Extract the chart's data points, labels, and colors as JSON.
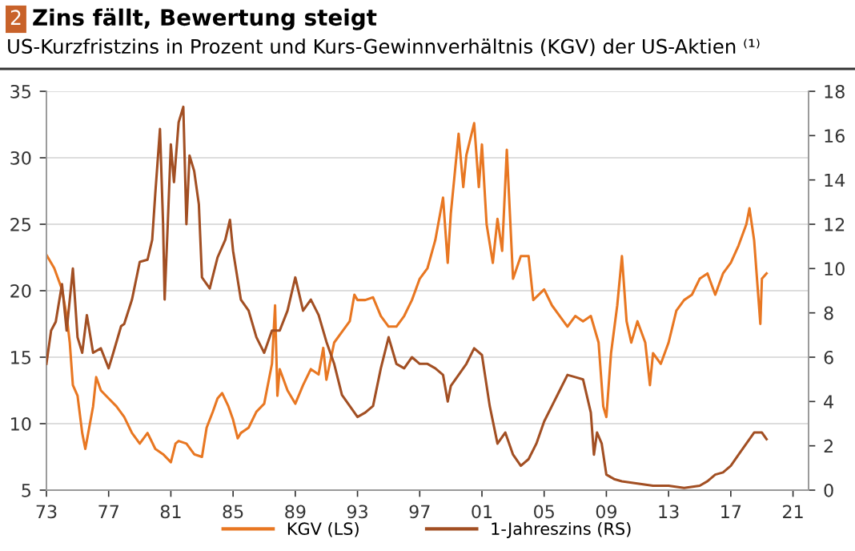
{
  "chart_data": {
    "type": "line",
    "title": "Zins fällt, Bewertung steigt",
    "subtitle": "US-Kurzfristzins in Prozent und Kurs-Gewinnverhältnis (KGV) der US-Aktien ⁽¹⁾",
    "annotations": [
      "2"
    ],
    "series": [
      {
        "name": "KGV (LS)",
        "color": "#e87722",
        "x": [
          1973.0,
          1973.5,
          1974.0,
          1974.3,
          1974.5,
          1974.7,
          1975.0,
          1975.3,
          1975.5,
          1976.0,
          1976.2,
          1976.5,
          1977.0,
          1977.5,
          1978.0,
          1978.5,
          1979.0,
          1979.5,
          1980.0,
          1980.5,
          1981.0,
          1981.3,
          1981.5,
          1982.0,
          1982.5,
          1983.0,
          1983.3,
          1983.7,
          1984.0,
          1984.3,
          1984.7,
          1985.0,
          1985.3,
          1985.5,
          1986.0,
          1986.5,
          1987.0,
          1987.3,
          1987.5,
          1987.7,
          1987.85,
          1988.0,
          1988.5,
          1989.0,
          1989.5,
          1990.0,
          1990.5,
          1990.8,
          1991.0,
          1991.5,
          1992.0,
          1992.5,
          1992.8,
          1993.0,
          1993.5,
          1994.0,
          1994.5,
          1995.0,
          1995.5,
          1996.0,
          1996.5,
          1997.0,
          1997.5,
          1998.0,
          1998.5,
          1998.8,
          1999.0,
          1999.5,
          1999.8,
          2000.0,
          2000.5,
          2000.8,
          2001.0,
          2001.3,
          2001.7,
          2002.0,
          2002.3,
          2002.6,
          2003.0,
          2003.5,
          2004.0,
          2004.3,
          2005.0,
          2005.5,
          2006.0,
          2006.5,
          2007.0,
          2007.5,
          2008.0,
          2008.5,
          2008.8,
          2009.0,
          2009.3,
          2009.7,
          2010.0,
          2010.3,
          2010.6,
          2011.0,
          2011.5,
          2011.8,
          2012.0,
          2012.5,
          2013.0,
          2013.5,
          2014.0,
          2014.5,
          2015.0,
          2015.5,
          2016.0,
          2016.5,
          2017.0,
          2017.5,
          2018.0,
          2018.2,
          2018.5,
          2018.9,
          2019.0,
          2019.3
        ],
        "values": [
          22.7,
          21.7,
          20.1,
          18.1,
          16.1,
          12.9,
          12.1,
          9.3,
          8.1,
          11.3,
          13.5,
          12.5,
          11.9,
          11.3,
          10.5,
          9.3,
          8.5,
          9.3,
          8.1,
          7.7,
          7.1,
          8.5,
          8.7,
          8.5,
          7.7,
          7.5,
          9.7,
          10.9,
          11.9,
          12.3,
          11.3,
          10.3,
          8.9,
          9.3,
          9.7,
          10.9,
          11.5,
          13.3,
          14.5,
          18.9,
          12.1,
          14.1,
          12.5,
          11.5,
          12.9,
          14.1,
          13.7,
          15.7,
          13.3,
          16.1,
          16.9,
          17.7,
          19.7,
          19.3,
          19.3,
          19.5,
          18.1,
          17.3,
          17.3,
          18.1,
          19.3,
          20.9,
          21.7,
          23.8,
          27.0,
          22.1,
          25.8,
          31.8,
          27.8,
          30.2,
          32.6,
          27.8,
          31.0,
          25.0,
          22.1,
          25.4,
          23.0,
          30.6,
          20.9,
          22.6,
          22.6,
          19.3,
          20.1,
          18.9,
          18.1,
          17.3,
          18.1,
          17.7,
          18.1,
          16.1,
          11.3,
          10.5,
          15.3,
          18.9,
          22.6,
          17.7,
          16.1,
          17.7,
          16.1,
          12.9,
          15.3,
          14.5,
          16.1,
          18.5,
          19.3,
          19.7,
          20.9,
          21.3,
          19.7,
          21.3,
          22.1,
          23.4,
          25.0,
          26.2,
          23.8,
          17.5,
          20.9,
          21.3
        ]
      },
      {
        "name": "1-Jahreszins (RS)",
        "color": "#a24f23",
        "axis": "y2",
        "x": [
          1973.0,
          1973.3,
          1973.6,
          1974.0,
          1974.3,
          1974.5,
          1974.7,
          1975.0,
          1975.3,
          1975.6,
          1976.0,
          1976.5,
          1977.0,
          1977.3,
          1977.8,
          1978.0,
          1978.5,
          1979.0,
          1979.5,
          1979.8,
          1980.0,
          1980.3,
          1980.5,
          1980.6,
          1980.8,
          1981.0,
          1981.2,
          1981.5,
          1981.8,
          1982.0,
          1982.2,
          1982.5,
          1982.8,
          1983.0,
          1983.5,
          1984.0,
          1984.5,
          1984.8,
          1985.0,
          1985.5,
          1986.0,
          1986.5,
          1987.0,
          1987.5,
          1988.0,
          1988.5,
          1989.0,
          1989.5,
          1990.0,
          1990.5,
          1991.0,
          1991.5,
          1992.0,
          1992.5,
          1993.0,
          1993.5,
          1994.0,
          1994.5,
          1995.0,
          1995.5,
          1996.0,
          1996.5,
          1997.0,
          1997.5,
          1998.0,
          1998.5,
          1998.8,
          1999.0,
          1999.5,
          2000.0,
          2000.5,
          2001.0,
          2001.5,
          2002.0,
          2002.5,
          2003.0,
          2003.5,
          2004.0,
          2004.5,
          2005.0,
          2005.5,
          2006.0,
          2006.5,
          2007.0,
          2007.5,
          2008.0,
          2008.2,
          2008.4,
          2008.7,
          2009.0,
          2009.5,
          2010.0,
          2011.0,
          2012.0,
          2013.0,
          2014.0,
          2015.0,
          2015.5,
          2016.0,
          2016.5,
          2017.0,
          2017.5,
          2018.0,
          2018.5,
          2019.0,
          2019.3
        ],
        "values": [
          5.7,
          7.2,
          7.6,
          9.3,
          7.2,
          8.6,
          10.0,
          6.9,
          6.2,
          7.9,
          6.2,
          6.4,
          5.5,
          6.2,
          7.4,
          7.5,
          8.6,
          10.3,
          10.4,
          11.3,
          13.4,
          16.3,
          12.0,
          8.6,
          12.0,
          15.6,
          13.9,
          16.6,
          17.3,
          12.0,
          15.1,
          14.4,
          12.9,
          9.6,
          9.1,
          10.5,
          11.3,
          12.2,
          10.8,
          8.6,
          8.1,
          6.9,
          6.2,
          7.2,
          7.2,
          8.1,
          9.6,
          8.1,
          8.6,
          7.9,
          6.7,
          5.7,
          4.3,
          3.8,
          3.3,
          3.5,
          3.8,
          5.5,
          6.9,
          5.7,
          5.5,
          6.0,
          5.7,
          5.7,
          5.5,
          5.2,
          4.0,
          4.7,
          5.2,
          5.7,
          6.4,
          6.1,
          3.8,
          2.1,
          2.6,
          1.6,
          1.1,
          1.4,
          2.1,
          3.1,
          3.8,
          4.5,
          5.2,
          5.1,
          5.0,
          3.5,
          1.6,
          2.6,
          2.1,
          0.7,
          0.5,
          0.4,
          0.3,
          0.2,
          0.2,
          0.1,
          0.2,
          0.4,
          0.7,
          0.8,
          1.1,
          1.6,
          2.1,
          2.6,
          2.6,
          2.3
        ]
      }
    ],
    "xlim": [
      1973,
      2022
    ],
    "xticks": [
      {
        "value": 1973,
        "label": "73"
      },
      {
        "value": 1977,
        "label": "77"
      },
      {
        "value": 1981,
        "label": "81"
      },
      {
        "value": 1985,
        "label": "85"
      },
      {
        "value": 1989,
        "label": "89"
      },
      {
        "value": 1993,
        "label": "93"
      },
      {
        "value": 1997,
        "label": "97"
      },
      {
        "value": 2001,
        "label": "01"
      },
      {
        "value": 2005,
        "label": "05"
      },
      {
        "value": 2009,
        "label": "09"
      },
      {
        "value": 2013,
        "label": "13"
      },
      {
        "value": 2017,
        "label": "17"
      },
      {
        "value": 2021,
        "label": "21"
      }
    ],
    "ylim": [
      5,
      35
    ],
    "yticks": [
      5,
      10,
      15,
      20,
      25,
      30,
      35
    ],
    "y2lim": [
      0,
      18
    ],
    "y2ticks": [
      0,
      2,
      4,
      6,
      8,
      10,
      12,
      14,
      16,
      18
    ],
    "grid": "y",
    "legend": "bottom"
  }
}
